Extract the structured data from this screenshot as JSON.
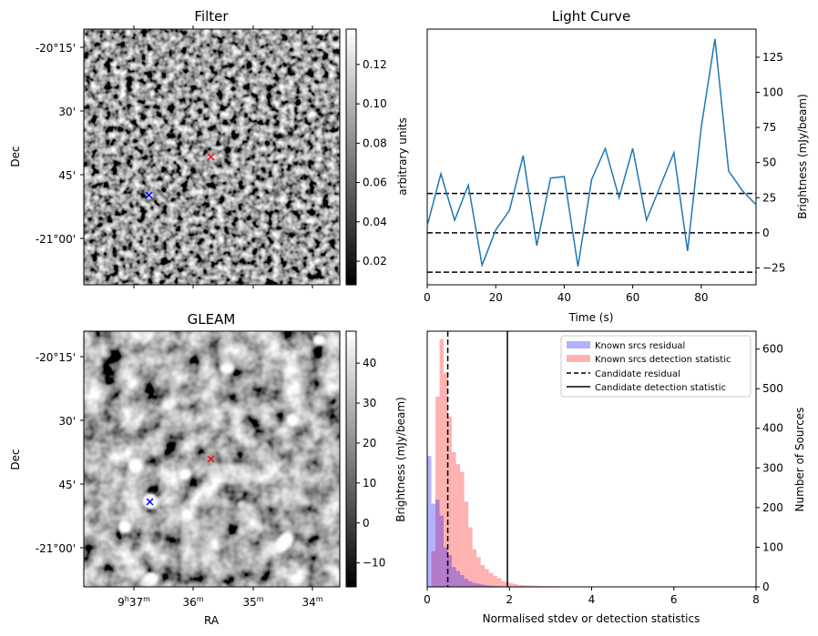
{
  "panels": {
    "filter": {
      "title": "Filter",
      "ylabel": "Dec",
      "dec_ticks": [
        "-20°15'",
        "30'",
        "45'",
        "-21°00'"
      ],
      "colorbar": {
        "label": "arbitrary units",
        "ticks": [
          "0.02",
          "0.04",
          "0.06",
          "0.08",
          "0.10",
          "0.12"
        ],
        "range": [
          0.008,
          0.138
        ],
        "colormap": "gray"
      },
      "markers": [
        {
          "color": "#ff0000",
          "symbol": "x"
        },
        {
          "color": "#0000ff",
          "symbol": "x"
        }
      ]
    },
    "gleam": {
      "title": "GLEAM",
      "ylabel": "Dec",
      "xlabel": "RA",
      "dec_ticks": [
        "-20°15'",
        "30'",
        "45'",
        "-21°00'"
      ],
      "ra_ticks": [
        {
          "h": "9",
          "m": "37",
          "label": "9h37m"
        },
        {
          "h": "",
          "m": "36",
          "label": "36m"
        },
        {
          "h": "",
          "m": "35",
          "label": "35m"
        },
        {
          "h": "",
          "m": "34",
          "label": "34m"
        }
      ],
      "colorbar": {
        "ticks": [
          "−10",
          "0",
          "10",
          "20",
          "30",
          "40"
        ],
        "range": [
          -16,
          48
        ],
        "colormap": "gray"
      },
      "markers": [
        {
          "color": "#ff0000",
          "symbol": "x"
        },
        {
          "color": "#0000ff",
          "symbol": "x"
        }
      ]
    }
  },
  "chart_data": [
    {
      "type": "line",
      "title": "Light Curve",
      "xlabel": "Time (s)",
      "ylabel": "Brightness (mJy/beam)",
      "xlim": [
        0,
        96
      ],
      "ylim": [
        -37,
        145
      ],
      "xticks": [
        0,
        20,
        40,
        60,
        80
      ],
      "yticks": [
        -25,
        0,
        25,
        50,
        75,
        100,
        125
      ],
      "ytick_labels": [
        "−25",
        "0",
        "25",
        "50",
        "75",
        "100",
        "125"
      ],
      "series": [
        {
          "color": "#1f77b4",
          "x": [
            0,
            4,
            8,
            12,
            16,
            20,
            24,
            28,
            32,
            36,
            40,
            44,
            48,
            52,
            56,
            60,
            64,
            68,
            72,
            76,
            80,
            84,
            88,
            92,
            96
          ],
          "y": [
            5,
            42,
            9,
            34,
            -23,
            2,
            16,
            55,
            -9,
            39,
            40,
            -24,
            38,
            60,
            25,
            60,
            9,
            33,
            57,
            -13,
            75,
            138,
            44,
            30,
            20
          ]
        }
      ],
      "hlines": [
        {
          "y": 28,
          "style": "dashed"
        },
        {
          "y": 0,
          "style": "dashed"
        },
        {
          "y": -28,
          "style": "dashed"
        }
      ],
      "grid": false
    },
    {
      "type": "bar",
      "subtype": "histogram",
      "xlabel": "Normalised stdev or detection statistics",
      "ylabel": "Brightness (mJy/beam)",
      "ylabel_right": "Number of Sources",
      "xlim": [
        0,
        8
      ],
      "ylim": [
        0,
        645
      ],
      "xticks": [
        0,
        2,
        4,
        6,
        8
      ],
      "yticks": [
        0,
        100,
        200,
        300,
        400,
        500,
        600
      ],
      "legend_position": "top-right",
      "bin_width": 0.1,
      "series": [
        {
          "name": "Known srcs residual",
          "color": "#0000ff",
          "alpha": 0.3,
          "bin_start": 0.0,
          "values": [
            330,
            210,
            220,
            180,
            100,
            80,
            50,
            40,
            30,
            20,
            14,
            10,
            8,
            6,
            4,
            3,
            2,
            2,
            1,
            1
          ]
        },
        {
          "name": "Known srcs detection statistic",
          "color": "#ff0000",
          "alpha": 0.3,
          "bin_start": 0.0,
          "values": [
            0,
            90,
            480,
            625,
            540,
            430,
            340,
            310,
            290,
            215,
            150,
            95,
            75,
            55,
            45,
            35,
            28,
            22,
            15,
            12,
            9,
            7,
            5,
            4,
            4,
            3,
            3,
            2,
            2,
            2,
            2,
            2,
            1,
            1,
            1,
            1,
            1,
            1,
            1,
            1,
            1,
            1,
            1,
            0,
            1,
            0,
            1,
            0,
            1,
            0,
            0,
            1,
            0,
            0,
            1,
            0,
            0,
            0,
            1,
            0,
            0,
            0,
            0,
            0,
            0,
            0,
            0,
            0,
            0,
            0,
            0,
            0,
            0,
            0,
            0,
            1
          ]
        }
      ],
      "vlines": [
        {
          "name": "Candidate residual",
          "x": 0.5,
          "style": "dashed"
        },
        {
          "name": "Candidate detection statistic",
          "x": 1.95,
          "style": "solid"
        }
      ]
    }
  ]
}
